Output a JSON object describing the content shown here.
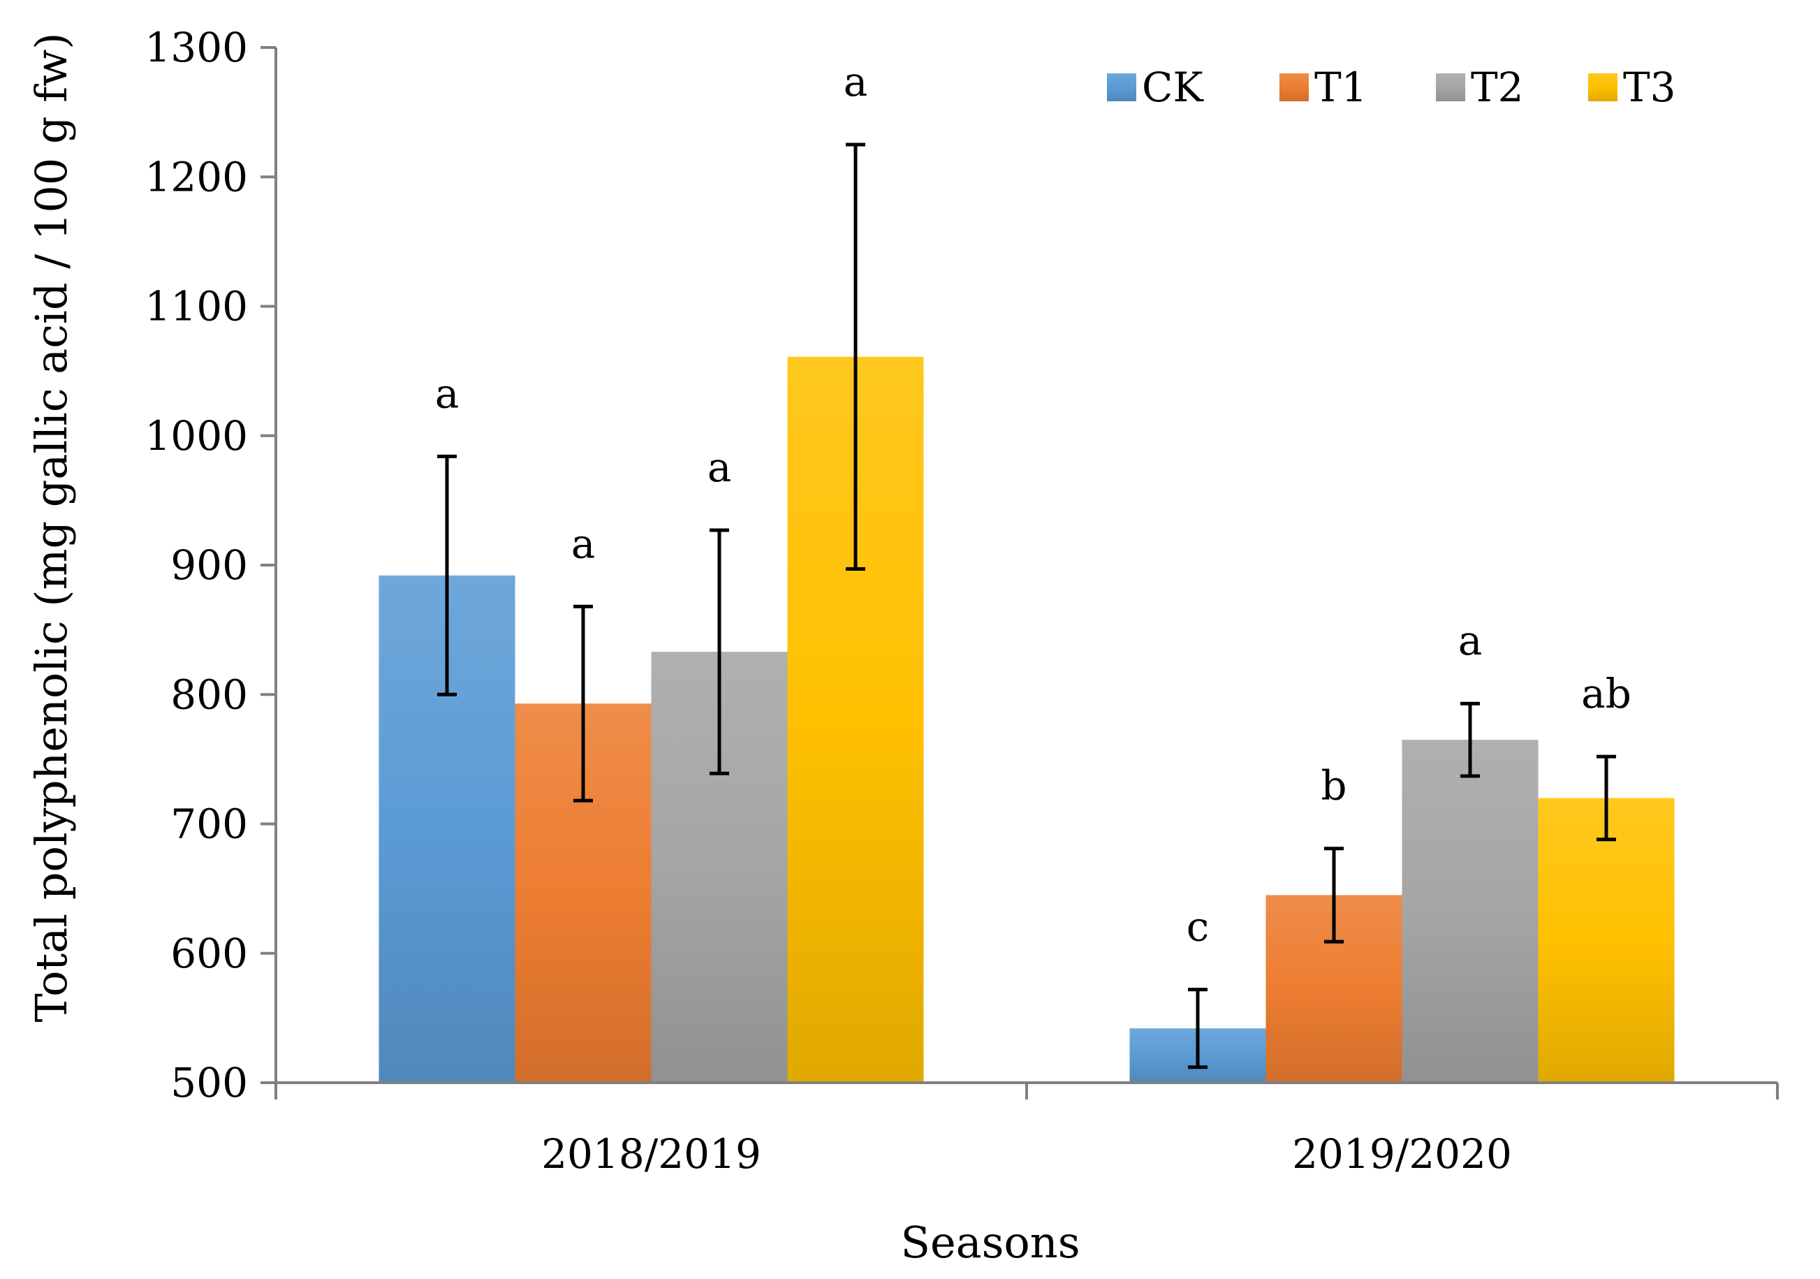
{
  "chart_data": {
    "type": "bar",
    "title": "",
    "xlabel": "Seasons",
    "ylabel": "Total polyphenolic  (mg gallic acid / 100 g  fw)",
    "ylim": [
      500,
      1300
    ],
    "yticks": [
      500,
      600,
      700,
      800,
      900,
      1000,
      1100,
      1200,
      1300
    ],
    "categories": [
      "2018/2019",
      "2019/2020"
    ],
    "legend_position": "top-right",
    "grid": false,
    "series": [
      {
        "name": "CK",
        "color": "#5B9BD5",
        "values": [
          892,
          542
        ],
        "error": [
          92,
          30
        ],
        "letters": [
          "a",
          "c"
        ]
      },
      {
        "name": "T1",
        "color": "#ED7D31",
        "values": [
          793,
          645
        ],
        "error": [
          75,
          36
        ],
        "letters": [
          "a",
          "b"
        ]
      },
      {
        "name": "T2",
        "color": "#A5A5A5",
        "values": [
          833,
          765
        ],
        "error": [
          94,
          28
        ],
        "letters": [
          "a",
          "a"
        ]
      },
      {
        "name": "T3",
        "color": "#FFC000",
        "values": [
          1061,
          720
        ],
        "error": [
          164,
          32
        ],
        "letters": [
          "a",
          "ab"
        ]
      }
    ]
  }
}
